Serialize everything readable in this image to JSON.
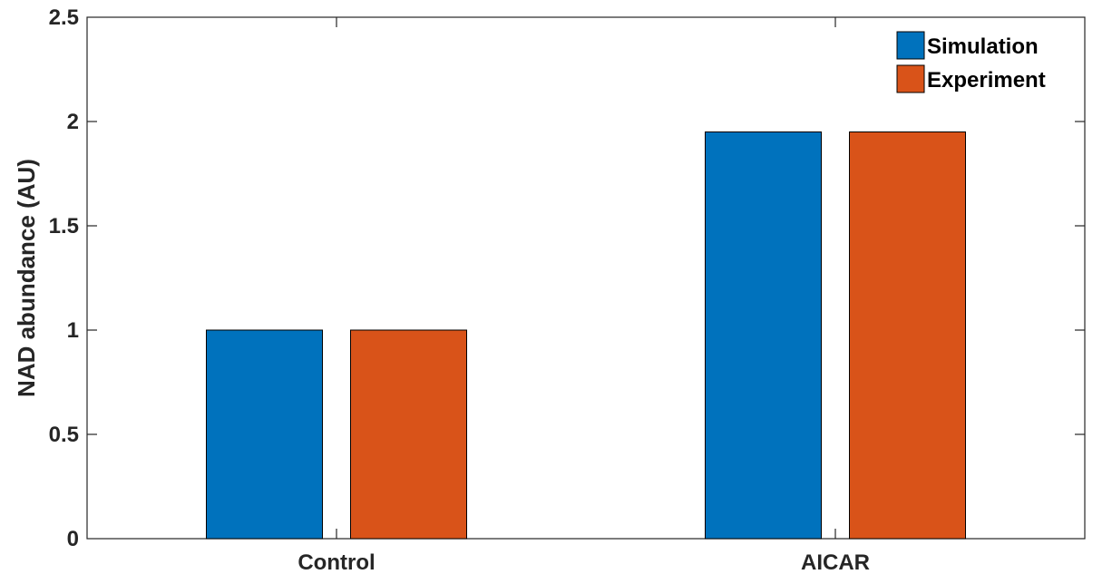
{
  "chart_data": {
    "type": "bar",
    "categories": [
      "Control",
      "AICAR"
    ],
    "series": [
      {
        "name": "Simulation",
        "values": [
          1.0,
          1.95
        ],
        "color": "#0072bd"
      },
      {
        "name": "Experiment",
        "values": [
          1.0,
          1.95
        ],
        "color": "#d95319"
      }
    ],
    "title": "",
    "xlabel": "",
    "ylabel": "NAD abundance (AU)",
    "ylim": [
      0,
      2.5
    ],
    "yticks": [
      0,
      0.5,
      1,
      1.5,
      2,
      2.5
    ],
    "ytick_labels": [
      "0",
      "0.5",
      "1",
      "1.5",
      "2",
      "2.5"
    ],
    "grid": false,
    "legend_position": "top-right"
  }
}
